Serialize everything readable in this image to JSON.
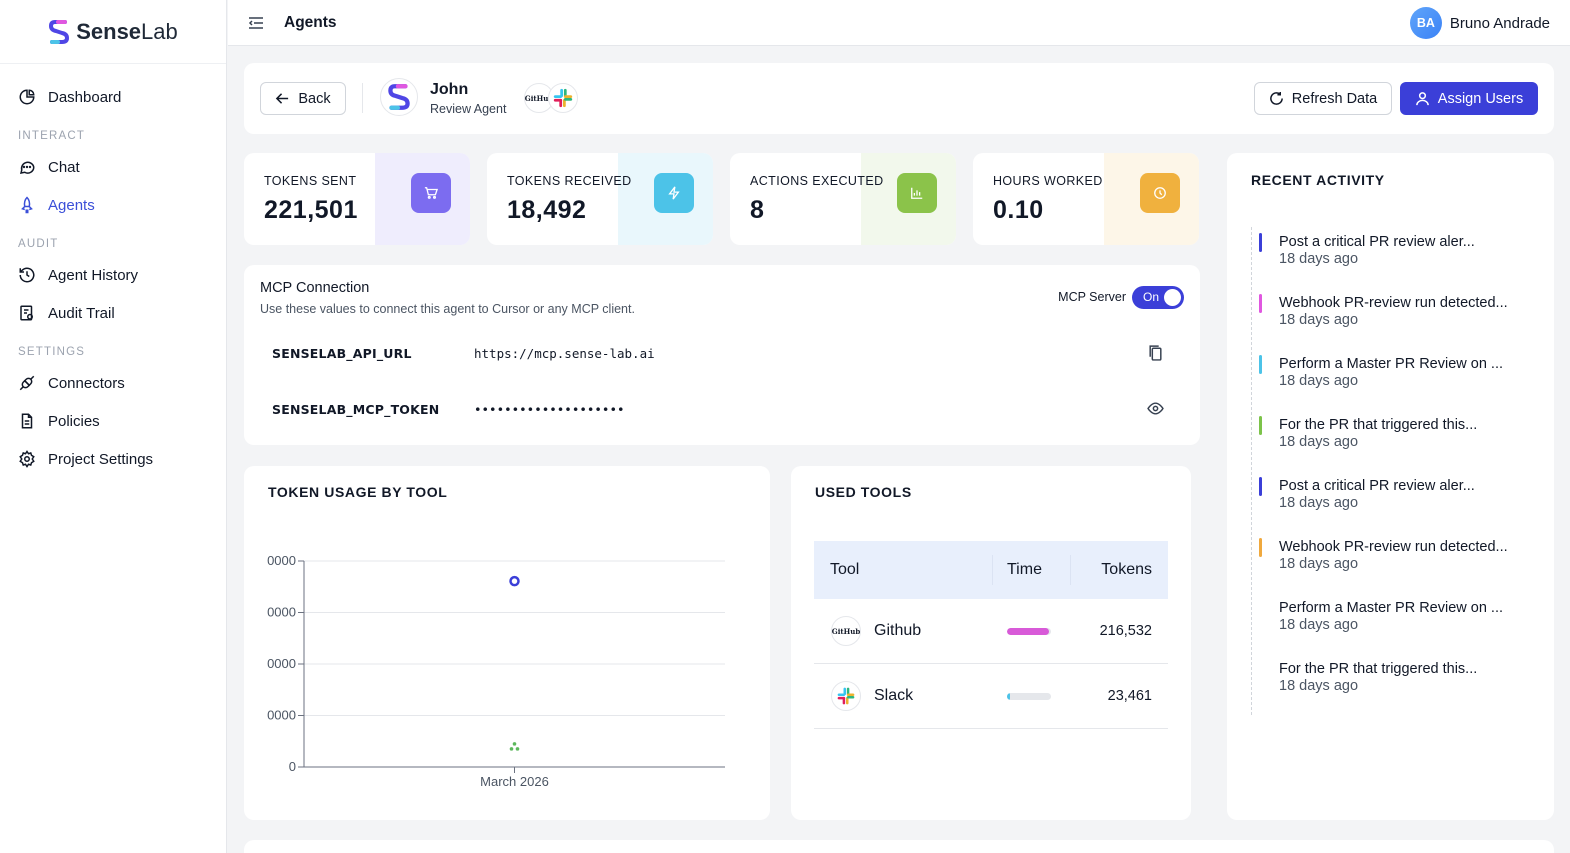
{
  "brand": {
    "name_bold": "Sense",
    "name_light": "Lab"
  },
  "sidebar": {
    "dashboard": "Dashboard",
    "section_interact": "INTERACT",
    "chat": "Chat",
    "agents": "Agents",
    "section_audit": "AUDIT",
    "agent_history": "Agent History",
    "audit_trail": "Audit Trail",
    "section_settings": "SETTINGS",
    "connectors": "Connectors",
    "policies": "Policies",
    "project_settings": "Project Settings"
  },
  "topbar": {
    "title": "Agents",
    "user_initials": "BA",
    "user_name": "Bruno Andrade"
  },
  "agent": {
    "back_label": "Back",
    "name": "John",
    "role": "Review Agent",
    "badge_github": "GitHub",
    "refresh_label": "Refresh Data",
    "assign_label": "Assign Users"
  },
  "stats": [
    {
      "label": "TOKENS SENT",
      "value": "221,501",
      "color": "#7c6cf0",
      "band": "#efedfd"
    },
    {
      "label": "TOKENS RECEIVED",
      "value": "18,492",
      "color": "#4cc3e8",
      "band": "#e9f7fc"
    },
    {
      "label": "ACTIONS EXECUTED",
      "value": "8",
      "color": "#8bc34a",
      "band": "#f2f8ec"
    },
    {
      "label": "HOURS WORKED",
      "value": "0.10",
      "color": "#f0b13e",
      "band": "#fdf6e8"
    }
  ],
  "mcp": {
    "title": "MCP Connection",
    "subtitle": "Use these values to connect this agent to Cursor or any MCP client.",
    "server_label": "MCP Server",
    "toggle_label": "On",
    "api_url_key": "SENSELAB_API_URL",
    "api_url_value": "https://mcp.sense-lab.ai",
    "token_key": "SENSELAB_MCP_TOKEN",
    "token_value": "••••••••••••••••••••"
  },
  "chart_card": {
    "title": "TOKEN USAGE BY TOOL"
  },
  "chart_data": {
    "type": "scatter",
    "title": "TOKEN USAGE BY TOOL",
    "categories": [
      "March 2026"
    ],
    "y_ticks": [
      "0000",
      "0000",
      "0000",
      "0000",
      "0"
    ],
    "ylim": [
      0,
      240000
    ],
    "grid": true,
    "series": [
      {
        "values": [
          216532
        ],
        "color": "#3b3fd8"
      },
      {
        "values": [
          23461
        ],
        "color": "#5cb85c"
      }
    ]
  },
  "tools": {
    "title": "USED TOOLS",
    "columns": [
      "Tool",
      "Time",
      "Tokens"
    ],
    "rows": [
      {
        "logo": "GitHub",
        "name": "Github",
        "time_fraction": 0.95,
        "bar_color": "#d85ad8",
        "tokens": "216,532"
      },
      {
        "logo": "",
        "name": "Slack",
        "time_fraction": 0.06,
        "bar_color": "#4cc3e8",
        "tokens": "23,461"
      }
    ]
  },
  "activity": {
    "title": "RECENT ACTIVITY",
    "items": [
      {
        "text": "Post a critical PR review aler...",
        "date": "18 days ago",
        "color": "#3b3fd8"
      },
      {
        "text": "Webhook PR-review run detected...",
        "date": "18 days ago",
        "color": "#e057e0"
      },
      {
        "text": "Perform a Master PR Review on ...",
        "date": "18 days ago",
        "color": "#4cc3e8"
      },
      {
        "text": "For the PR that triggered this...",
        "date": "18 days ago",
        "color": "#7cc34a"
      },
      {
        "text": "Post a critical PR review aler...",
        "date": "18 days ago",
        "color": "#3b3fd8"
      },
      {
        "text": "Webhook PR-review run detected...",
        "date": "18 days ago",
        "color": "#f0a93e"
      },
      {
        "text": "Perform a Master PR Review on ...",
        "date": "18 days ago",
        "color": ""
      },
      {
        "text": "For the PR that triggered this...",
        "date": "18 days ago",
        "color": ""
      }
    ]
  }
}
